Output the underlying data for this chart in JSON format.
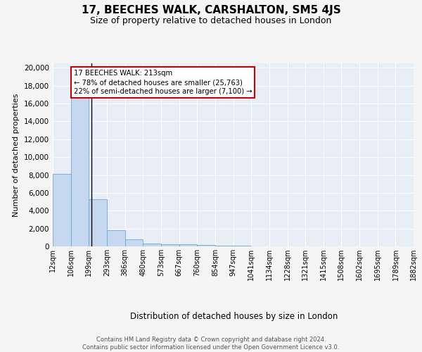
{
  "title": "17, BEECHES WALK, CARSHALTON, SM5 4JS",
  "subtitle": "Size of property relative to detached houses in London",
  "xlabel": "Distribution of detached houses by size in London",
  "ylabel": "Number of detached properties",
  "bar_color": "#c5d8ef",
  "bar_edge_color": "#6aaad4",
  "vline_color": "#000000",
  "vline_x": 213,
  "annotation_text": "17 BEECHES WALK: 213sqm\n← 78% of detached houses are smaller (25,763)\n22% of semi-detached houses are larger (7,100) →",
  "annotation_box_color": "#ffffff",
  "annotation_box_edge": "#cc0000",
  "bin_edges": [
    12,
    106,
    199,
    293,
    386,
    480,
    573,
    667,
    760,
    854,
    947,
    1041,
    1134,
    1228,
    1321,
    1415,
    1508,
    1602,
    1695,
    1789,
    1882
  ],
  "bar_heights": [
    8100,
    16700,
    5300,
    1800,
    750,
    350,
    250,
    200,
    150,
    100,
    50,
    30,
    20,
    15,
    10,
    8,
    5,
    4,
    3,
    2
  ],
  "yticks": [
    0,
    2000,
    4000,
    6000,
    8000,
    10000,
    12000,
    14000,
    16000,
    18000,
    20000
  ],
  "ylim": [
    0,
    20500
  ],
  "background_color": "#f5f5f5",
  "plot_bg_color": "#e8eef5",
  "footer_text": "Contains HM Land Registry data © Crown copyright and database right 2024.\nContains public sector information licensed under the Open Government Licence v3.0.",
  "title_fontsize": 11,
  "subtitle_fontsize": 9,
  "tick_label_fontsize": 7,
  "ylabel_fontsize": 8,
  "xlabel_fontsize": 8.5
}
